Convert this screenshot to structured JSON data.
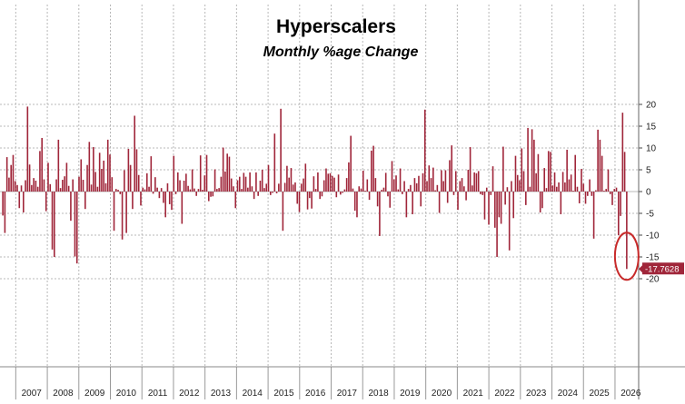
{
  "chart_data": {
    "type": "bar",
    "title": "Hyperscalers",
    "subtitle": "Monthly %age Change",
    "xlabel": "",
    "ylabel": "",
    "ylim": [
      -20,
      20
    ],
    "yticks": [
      -20,
      -15,
      -10,
      -5,
      0,
      5,
      10,
      15,
      20
    ],
    "x_start_year": 2006.5,
    "x_end_year": 2026.75,
    "year_labels": [
      "2007",
      "2008",
      "2009",
      "2010",
      "2011",
      "2012",
      "2013",
      "2014",
      "2015",
      "2016",
      "2017",
      "2018",
      "2019",
      "2020",
      "2021",
      "2022",
      "2023",
      "2024",
      "2025",
      "2026"
    ],
    "grid": true,
    "bar_color": "#a0263a",
    "last_value_label": "-17.7628",
    "last_value": -17.7628,
    "callout_color": "#c82a2a",
    "values": [
      -5.5,
      -9.5,
      7.9,
      3.2,
      6.1,
      8.4,
      2.4,
      1.5,
      -3.8,
      1.4,
      -4.8,
      2.6,
      19.5,
      6.2,
      1.5,
      3.1,
      2.5,
      1.1,
      9.3,
      12.3,
      2.8,
      -4.5,
      6.6,
      1.7,
      -13.3,
      -15.0,
      2.8,
      11.9,
      0.8,
      2.7,
      3.5,
      6.6,
      1.3,
      -6.7,
      2.8,
      -14.9,
      -16.5,
      3.4,
      7.4,
      2.7,
      -4.0,
      6.1,
      11.4,
      1.6,
      10.2,
      4.5,
      1.1,
      8.9,
      5.2,
      7.1,
      1.9,
      11.9,
      8.5,
      3.3,
      -9.0,
      0.6,
      0.4,
      -0.6,
      -11.0,
      4.9,
      -9.5,
      9.8,
      6.1,
      -4.0,
      17.4,
      9.7,
      3.8,
      -3.2,
      0.9,
      0.5,
      4.2,
      1.1,
      8.1,
      -0.5,
      3.3,
      0.9,
      -1.5,
      0.8,
      -2.6,
      -5.9,
      1.9,
      -2.9,
      -4.2,
      8.2,
      -0.6,
      4.4,
      2.6,
      -7.4,
      2.5,
      4.1,
      1.3,
      0.5,
      5.1,
      0.7,
      -1.0,
      0.6,
      8.3,
      0.4,
      3.7,
      8.4,
      -2.2,
      -1.2,
      -1.1,
      5.1,
      0.6,
      0.8,
      3.4,
      10.1,
      4.6,
      8.7,
      8.0,
      3.0,
      1.2,
      -3.8,
      2.6,
      3.4,
      0.6,
      4.3,
      3.4,
      0.9,
      4.4,
      1.2,
      -1.7,
      4.4,
      -1.0,
      2.5,
      5.0,
      0.8,
      1.8,
      6.1,
      -0.8,
      -0.3,
      13.3,
      -0.4,
      1.8,
      19.0,
      -9.0,
      2.0,
      5.9,
      3.2,
      5.4,
      1.6,
      2.1,
      -2.8,
      -4.7,
      1.8,
      3.0,
      6.4,
      -4.1,
      -1.5,
      -3.9,
      3.5,
      0.6,
      4.4,
      -1.7,
      -1.1,
      2.6,
      5.3,
      4.1,
      4.2,
      3.6,
      3.2,
      -1.3,
      3.9,
      -0.7,
      -0.3,
      0.5,
      3.1,
      6.7,
      12.8,
      0.7,
      -4.4,
      -5.9,
      1.2,
      0.7,
      4.8,
      0.2,
      2.8,
      -1.9,
      9.4,
      10.5,
      3.1,
      -3.4,
      -10.2,
      0.4,
      0.9,
      4.3,
      -1.1,
      -3.7,
      7.0,
      2.8,
      3.7,
      0.5,
      5.3,
      -0.6,
      2.4,
      -5.9,
      0.6,
      1.5,
      -5.2,
      3.1,
      1.9,
      3.6,
      -3.4,
      4.2,
      18.8,
      2.4,
      6.0,
      3.1,
      5.5,
      0.3,
      1.5,
      -4.9,
      4.9,
      2.4,
      4.9,
      -2.6,
      7.2,
      10.6,
      -0.8,
      4.7,
      -4.2,
      2.4,
      3.1,
      1.2,
      -2.0,
      5.0,
      10.2,
      1.4,
      4.4,
      4.2,
      4.7,
      -0.6,
      -0.8,
      -6.4,
      0.9,
      -7.6,
      -0.8,
      5.8,
      -8.3,
      -15.0,
      -5.9,
      -7.4,
      10.3,
      -3.0,
      1.0,
      -13.5,
      2.4,
      -6.1,
      8.2,
      3.8,
      2.6,
      9.9,
      4.7,
      -3.1,
      14.6,
      1.1,
      14.3,
      11.9,
      4.2,
      8.6,
      -4.8,
      -3.8,
      5.4,
      0.8,
      9.3,
      9.1,
      1.4,
      4.4,
      1.1,
      2.1,
      -5.2,
      4.5,
      2.1,
      9.6,
      2.8,
      3.9,
      0.2,
      8.4,
      1.1,
      -2.7,
      5.2,
      1.8,
      -2.8,
      -1.0,
      2.8,
      -1.0,
      -10.8,
      0.3,
      14.2,
      11.9,
      8.2,
      0.2,
      0.6,
      5.1,
      -0.6,
      -3.1,
      0.6,
      0.9,
      -10.0,
      -5.6,
      18.1,
      9.1,
      -17.7628
    ]
  }
}
